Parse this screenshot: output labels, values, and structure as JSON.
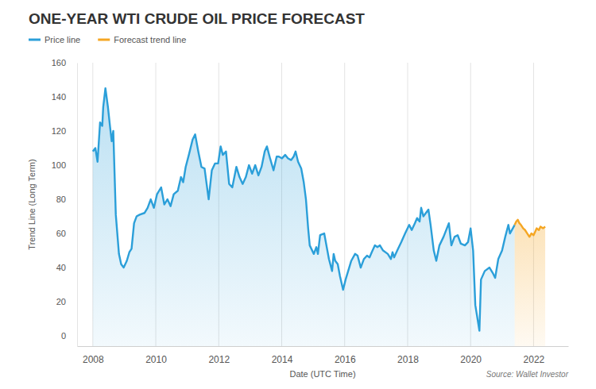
{
  "chart_data": {
    "type": "area",
    "title": "ONE-YEAR WTI CRUDE OIL PRICE FORECAST",
    "x_label": "Date (UTC Time)",
    "y_label": "Trend Line (Long Term)",
    "source": "Source: Wallet Investor",
    "xlim": [
      2007.5,
      2023.1
    ],
    "xticks": [
      2008,
      2010,
      2012,
      2014,
      2016,
      2018,
      2020,
      2022
    ],
    "ylim": [
      -6,
      160
    ],
    "yticks": [
      0,
      20,
      40,
      60,
      80,
      100,
      120,
      140,
      160
    ],
    "grid": "x",
    "legend": "top-left",
    "series": [
      {
        "name": "Price line",
        "color": "#2b9fd9",
        "x": [
          2008,
          2008.08,
          2008.15,
          2008.23,
          2008.3,
          2008.33,
          2008.4,
          2008.48,
          2008.55,
          2008.6,
          2008.65,
          2008.73,
          2008.83,
          2008.9,
          2008.98,
          2009.08,
          2009.16,
          2009.23,
          2009.31,
          2009.39,
          2009.49,
          2009.64,
          2009.74,
          2009.84,
          2009.94,
          2010.04,
          2010.17,
          2010.27,
          2010.37,
          2010.47,
          2010.57,
          2010.7,
          2010.8,
          2010.87,
          2010.95,
          2011.05,
          2011.17,
          2011.25,
          2011.35,
          2011.45,
          2011.55,
          2011.68,
          2011.78,
          2011.88,
          2011.98,
          2012.06,
          2012.13,
          2012.23,
          2012.33,
          2012.43,
          2012.56,
          2012.66,
          2012.76,
          2012.86,
          2012.96,
          2013.06,
          2013.16,
          2013.26,
          2013.36,
          2013.46,
          2013.53,
          2013.63,
          2013.74,
          2013.84,
          2013.91,
          2014.01,
          2014.11,
          2014.2,
          2014.3,
          2014.38,
          2014.44,
          2014.52,
          2014.62,
          2014.7,
          2014.77,
          2014.84,
          2014.89,
          2015.02,
          2015.1,
          2015.15,
          2015.22,
          2015.35,
          2015.45,
          2015.5,
          2015.6,
          2015.65,
          2015.7,
          2015.78,
          2015.85,
          2015.95,
          2016.03,
          2016.21,
          2016.33,
          2016.41,
          2016.51,
          2016.61,
          2016.71,
          2016.79,
          2016.86,
          2016.96,
          2017.04,
          2017.12,
          2017.22,
          2017.37,
          2017.47,
          2017.52,
          2017.57,
          2017.67,
          2017.8,
          2017.92,
          2018.05,
          2018.13,
          2018.23,
          2018.3,
          2018.38,
          2018.43,
          2018.5,
          2018.58,
          2018.66,
          2018.73,
          2018.83,
          2018.91,
          2019.01,
          2019.14,
          2019.31,
          2019.39,
          2019.49,
          2019.59,
          2019.69,
          2019.82,
          2019.92,
          2020,
          2020.08,
          2020.15,
          2020.28,
          2020.33,
          2020.45,
          2020.6,
          2020.7,
          2020.78,
          2020.88,
          2021,
          2021.1,
          2021.2,
          2021.25,
          2021.4
        ],
        "values": [
          108,
          110,
          102,
          125,
          123,
          134,
          145,
          134,
          122,
          114,
          120,
          71,
          48,
          42,
          40,
          44,
          49,
          51,
          66,
          70,
          71,
          72,
          75,
          80,
          75,
          83,
          87,
          77,
          80,
          76,
          83,
          85,
          93,
          90,
          99,
          106,
          115,
          118,
          108,
          99,
          98,
          80,
          97,
          101,
          101,
          111,
          106,
          108,
          89,
          87,
          99,
          93,
          89,
          93,
          100,
          95,
          100,
          94,
          99,
          108,
          111,
          104,
          97,
          105,
          105,
          104,
          106,
          104,
          103,
          105,
          108,
          102,
          98,
          90,
          80,
          63,
          53,
          48,
          52,
          48,
          59,
          60,
          50,
          45,
          38,
          48,
          44,
          42,
          35,
          27,
          33,
          44,
          48,
          47,
          40,
          45,
          47,
          46,
          49,
          53,
          52,
          53,
          50,
          48,
          45,
          49,
          46,
          50,
          55,
          60,
          65,
          62,
          66,
          69,
          67,
          75,
          70,
          72,
          74,
          65,
          50,
          44,
          53,
          58,
          66,
          53,
          58,
          59,
          54,
          53,
          55,
          63,
          50,
          18,
          3,
          33,
          38,
          40,
          37,
          34,
          45,
          50,
          58,
          65,
          60,
          65
        ]
      },
      {
        "name": "Forecast trend line",
        "color": "#f5a623",
        "x": [
          2021.4,
          2021.45,
          2021.5,
          2021.55,
          2021.6,
          2021.67,
          2021.73,
          2021.8,
          2021.87,
          2021.93,
          2022,
          2022.05,
          2022.1,
          2022.17,
          2022.22,
          2022.3,
          2022.37
        ],
        "values": [
          65,
          67,
          68,
          66,
          65,
          63,
          62,
          60,
          58,
          60,
          59,
          61,
          63,
          62,
          64,
          63,
          64
        ]
      }
    ]
  }
}
